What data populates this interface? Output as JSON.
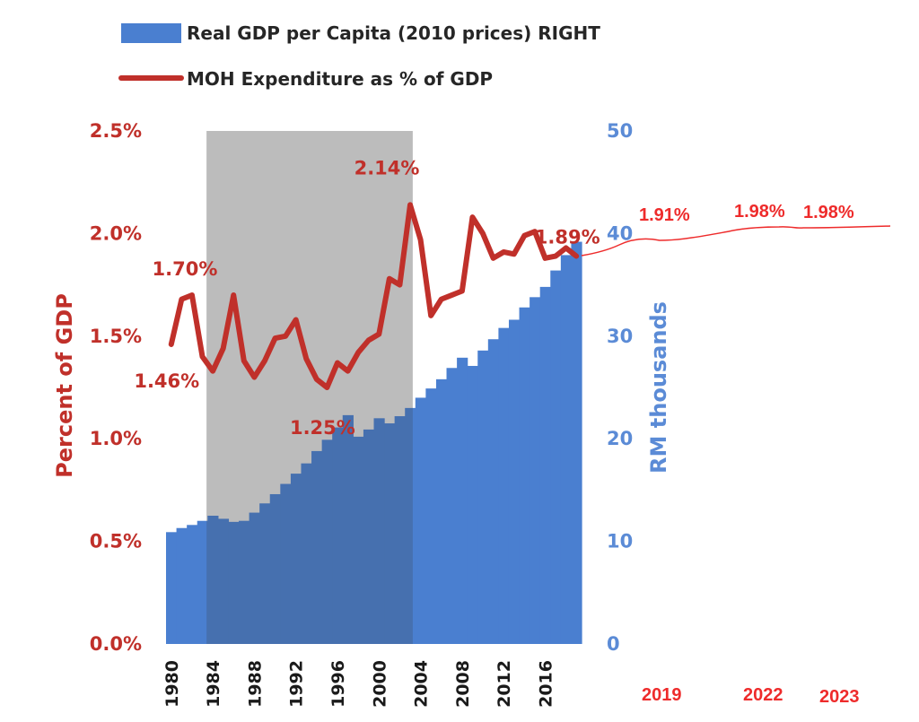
{
  "chart_data": {
    "type": "bar+line",
    "legend": {
      "placement": "top-left",
      "items": [
        {
          "label": "Real GDP per Capita (2010 prices) RIGHT",
          "kind": "bar",
          "color": "#4a7fd0"
        },
        {
          "label": "MOH Expenditure as % of GDP",
          "kind": "line",
          "color": "#c0302a"
        }
      ]
    },
    "y_left": {
      "label": "Percent of GDP",
      "range": [
        0,
        2.5
      ],
      "ticks": [
        "0.0%",
        "0.5%",
        "1.0%",
        "1.5%",
        "2.0%",
        "2.5%"
      ],
      "tick_values": [
        0,
        0.5,
        1.0,
        1.5,
        2.0,
        2.5
      ],
      "color": "#c0302a"
    },
    "y_right": {
      "label": "RM thousands",
      "range": [
        0,
        50
      ],
      "ticks": [
        "0",
        "10",
        "20",
        "30",
        "40",
        "50"
      ],
      "tick_values": [
        0,
        10,
        20,
        30,
        40,
        50
      ],
      "color": "#5b8bd6"
    },
    "x_ticks": [
      "1980",
      "1984",
      "1988",
      "1992",
      "1996",
      "2000",
      "2004",
      "2008",
      "2012",
      "2016"
    ],
    "years": [
      1980,
      1981,
      1982,
      1983,
      1984,
      1985,
      1986,
      1987,
      1988,
      1989,
      1990,
      1991,
      1992,
      1993,
      1994,
      1995,
      1996,
      1997,
      1998,
      1999,
      2000,
      2001,
      2002,
      2003,
      2004,
      2005,
      2006,
      2007,
      2008,
      2009,
      2010,
      2011,
      2012,
      2013,
      2014,
      2015,
      2016,
      2017,
      2018,
      2019
    ],
    "gdp_per_capita_rm_thousands": [
      10.9,
      11.3,
      11.6,
      12.0,
      12.5,
      12.2,
      11.9,
      12.0,
      12.8,
      13.7,
      14.6,
      15.6,
      16.6,
      17.6,
      18.8,
      19.9,
      21.1,
      22.3,
      20.2,
      20.9,
      22.0,
      21.5,
      22.2,
      23.0,
      24.0,
      24.9,
      25.8,
      26.9,
      27.9,
      27.1,
      28.6,
      29.7,
      30.8,
      31.6,
      32.8,
      33.8,
      34.8,
      36.4,
      37.9,
      39.2
    ],
    "moh_pct_gdp": [
      1.46,
      1.68,
      1.7,
      1.4,
      1.33,
      1.44,
      1.7,
      1.38,
      1.3,
      1.38,
      1.49,
      1.5,
      1.58,
      1.39,
      1.29,
      1.25,
      1.37,
      1.33,
      1.42,
      1.48,
      1.51,
      1.78,
      1.75,
      2.14,
      1.97,
      1.6,
      1.68,
      1.7,
      1.72,
      2.08,
      2.0,
      1.88,
      1.91,
      1.9,
      1.99,
      2.01,
      1.88,
      1.89,
      1.93,
      1.89
    ],
    "shaded_period": [
      1983,
      2003
    ],
    "data_labels": [
      {
        "text": "1.70%",
        "series": "moh",
        "year": 1982
      },
      {
        "text": "1.46%",
        "series": "moh",
        "year": 1980
      },
      {
        "text": "1.25%",
        "series": "moh",
        "year": 1995
      },
      {
        "text": "2.14%",
        "series": "moh",
        "year": 2003
      },
      {
        "text": "1.89%",
        "series": "moh",
        "year": 2019
      }
    ],
    "handwritten_projection": {
      "labels": [
        "1.91%",
        "1.98%",
        "1.98%"
      ],
      "years": [
        "2019",
        "2022",
        "2023"
      ],
      "color": "#ee2b2b"
    }
  }
}
